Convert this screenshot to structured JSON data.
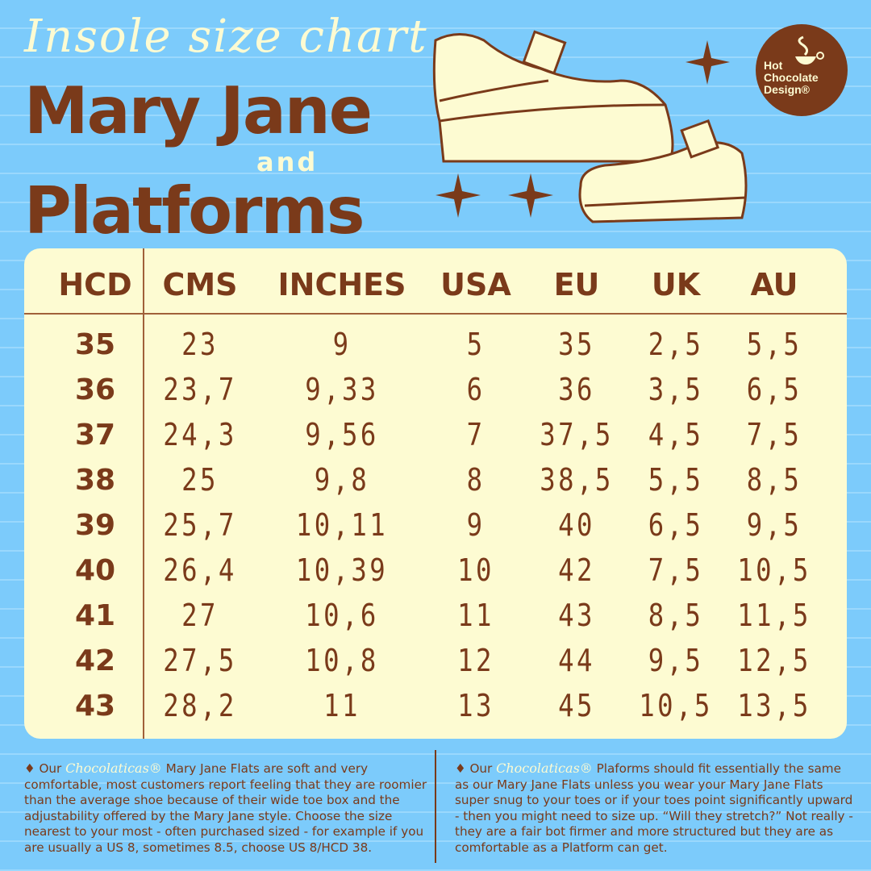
{
  "heading": {
    "script_title": "Insole size chart",
    "title_line1": "Mary Jane",
    "connector": "and",
    "title_line2": "Platforms"
  },
  "logo": {
    "line1": "Hot",
    "line2": "Chocolate",
    "line3": "Design®"
  },
  "colors": {
    "background": "#7ccbfb",
    "cream": "#fdfbd2",
    "brown": "#7a3a1a"
  },
  "chart_data": {
    "type": "table",
    "columns": [
      "HCD",
      "CMS",
      "INCHES",
      "USA",
      "EU",
      "UK",
      "AU"
    ],
    "rows": [
      [
        "35",
        "23",
        "9",
        "5",
        "35",
        "2,5",
        "5,5"
      ],
      [
        "36",
        "23,7",
        "9,33",
        "6",
        "36",
        "3,5",
        "6,5"
      ],
      [
        "37",
        "24,3",
        "9,56",
        "7",
        "37,5",
        "4,5",
        "7,5"
      ],
      [
        "38",
        "25",
        "9,8",
        "8",
        "38,5",
        "5,5",
        "8,5"
      ],
      [
        "39",
        "25,7",
        "10,11",
        "9",
        "40",
        "6,5",
        "9,5"
      ],
      [
        "40",
        "26,4",
        "10,39",
        "10",
        "42",
        "7,5",
        "10,5"
      ],
      [
        "41",
        "27",
        "10,6",
        "11",
        "43",
        "8,5",
        "11,5"
      ],
      [
        "42",
        "27,5",
        "10,8",
        "12",
        "44",
        "9,5",
        "12,5"
      ],
      [
        "43",
        "28,2",
        "11",
        "13",
        "45",
        "10,5",
        "13,5"
      ]
    ]
  },
  "notes": [
    {
      "prefix": "♦ Our",
      "brand": "Chocolaticas®",
      "text": "Mary Jane Flats are soft and very comfortable, most customers report feeling that they are roomier than the average shoe because of their wide toe box and the adjustability offered by the Mary Jane style. Choose the size nearest to your most - often purchased sized - for example if you are usually a US 8, sometimes 8.5, choose US 8/HCD 38."
    },
    {
      "prefix": "♦ Our",
      "brand": "Chocolaticas®",
      "text": "Plaforms should fit essentially the same as our Mary Jane Flats unless you wear your Mary Jane Flats super snug to your toes or if your toes point significantly upward - then you might need to size  up. “Will they stretch?” Not really - they are a fair bot firmer and more structured but they are as comfortable as a Platform can get."
    }
  ]
}
